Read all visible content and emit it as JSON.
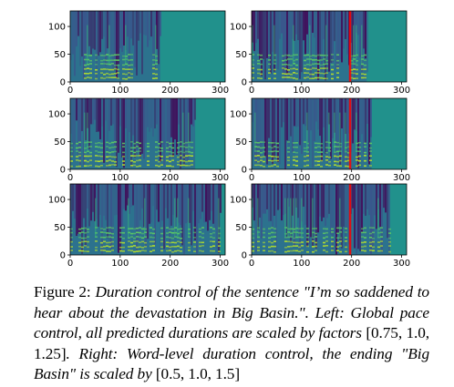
{
  "figure": {
    "panels": [
      {
        "column": "left",
        "row": 1,
        "content_end_x": 180
      },
      {
        "column": "left",
        "row": 2,
        "content_end_x": 250
      },
      {
        "column": "left",
        "row": 3,
        "content_end_x": 300
      },
      {
        "column": "right",
        "row": 1,
        "content_end_x": 230,
        "marker_x": 197
      },
      {
        "column": "right",
        "row": 2,
        "content_end_x": 240,
        "marker_x": 197
      },
      {
        "column": "right",
        "row": 3,
        "content_end_x": 275,
        "marker_x": 197
      }
    ],
    "x_ticks": [
      "0",
      "100",
      "200",
      "300"
    ],
    "y_ticks": [
      "0",
      "50",
      "100"
    ],
    "x_range": [
      0,
      310
    ],
    "y_range": [
      0,
      128
    ],
    "colors": {
      "background": "#21918c",
      "low": "#440154",
      "mid": "#2c728e",
      "high": "#b5de2b",
      "marker": "#ff0000"
    }
  },
  "caption": {
    "label": "Figure 2:",
    "part1": "Duration control of the sentence \"I’m so saddened to hear about the devastation in Big Basin.\". Left: Global pace control, all predicted durations are scaled by factors",
    "factors_left": "[0.75, 1.0, 1.25]",
    "part2": ". Right: Word-level duration control, the ending \"Big Basin\" is scaled by",
    "factors_right": "[0.5, 1.0, 1.5]"
  }
}
